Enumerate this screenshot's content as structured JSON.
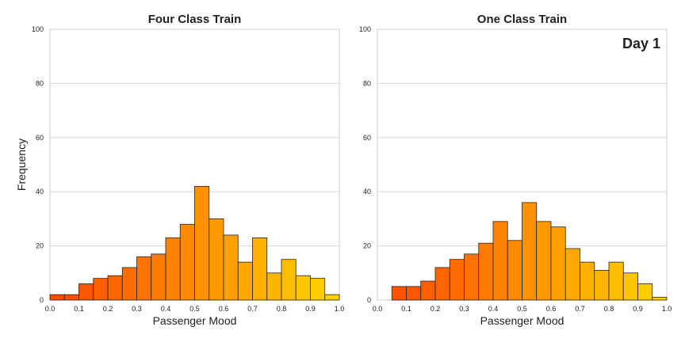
{
  "figure_annotation": "Day 1",
  "y_label": "Frequency",
  "chart_data": [
    {
      "type": "bar",
      "title": "Four Class Train",
      "xlabel": "Passenger Mood",
      "ylabel": "Frequency",
      "xlim": [
        0.0,
        1.0
      ],
      "ylim": [
        0,
        100
      ],
      "x_ticks": [
        "0.0",
        "0.1",
        "0.2",
        "0.3",
        "0.4",
        "0.5",
        "0.6",
        "0.7",
        "0.8",
        "0.9",
        "1.0"
      ],
      "y_ticks": [
        "0",
        "20",
        "40",
        "60",
        "80",
        "100"
      ],
      "grid": "horizontal",
      "bins": [
        {
          "start": 0.0,
          "end": 0.05,
          "value": 2
        },
        {
          "start": 0.05,
          "end": 0.1,
          "value": 2
        },
        {
          "start": 0.1,
          "end": 0.15,
          "value": 6
        },
        {
          "start": 0.15,
          "end": 0.2,
          "value": 8
        },
        {
          "start": 0.2,
          "end": 0.25,
          "value": 9
        },
        {
          "start": 0.25,
          "end": 0.3,
          "value": 12
        },
        {
          "start": 0.3,
          "end": 0.35,
          "value": 16
        },
        {
          "start": 0.35,
          "end": 0.4,
          "value": 17
        },
        {
          "start": 0.4,
          "end": 0.45,
          "value": 23
        },
        {
          "start": 0.45,
          "end": 0.5,
          "value": 28
        },
        {
          "start": 0.5,
          "end": 0.55,
          "value": 42
        },
        {
          "start": 0.55,
          "end": 0.6,
          "value": 30
        },
        {
          "start": 0.6,
          "end": 0.65,
          "value": 24
        },
        {
          "start": 0.65,
          "end": 0.7,
          "value": 14
        },
        {
          "start": 0.7,
          "end": 0.75,
          "value": 23
        },
        {
          "start": 0.75,
          "end": 0.8,
          "value": 10
        },
        {
          "start": 0.8,
          "end": 0.85,
          "value": 15
        },
        {
          "start": 0.85,
          "end": 0.9,
          "value": 9
        },
        {
          "start": 0.9,
          "end": 0.95,
          "value": 8
        },
        {
          "start": 0.95,
          "end": 1.0,
          "value": 2
        }
      ]
    },
    {
      "type": "bar",
      "title": "One Class Train",
      "xlabel": "Passenger Mood",
      "xlim": [
        0.0,
        1.0
      ],
      "ylim": [
        0,
        100
      ],
      "x_ticks": [
        "0.0",
        "0.1",
        "0.2",
        "0.3",
        "0.4",
        "0.5",
        "0.6",
        "0.7",
        "0.8",
        "0.9",
        "1.0"
      ],
      "y_ticks": [
        "0",
        "20",
        "40",
        "60",
        "80",
        "100"
      ],
      "grid": "horizontal",
      "bins": [
        {
          "start": 0.05,
          "end": 0.1,
          "value": 5
        },
        {
          "start": 0.1,
          "end": 0.15,
          "value": 5
        },
        {
          "start": 0.15,
          "end": 0.2,
          "value": 7
        },
        {
          "start": 0.2,
          "end": 0.25,
          "value": 12
        },
        {
          "start": 0.25,
          "end": 0.3,
          "value": 15
        },
        {
          "start": 0.3,
          "end": 0.35,
          "value": 17
        },
        {
          "start": 0.35,
          "end": 0.4,
          "value": 21
        },
        {
          "start": 0.4,
          "end": 0.45,
          "value": 29
        },
        {
          "start": 0.45,
          "end": 0.5,
          "value": 22
        },
        {
          "start": 0.5,
          "end": 0.55,
          "value": 36
        },
        {
          "start": 0.55,
          "end": 0.6,
          "value": 29
        },
        {
          "start": 0.6,
          "end": 0.65,
          "value": 27
        },
        {
          "start": 0.65,
          "end": 0.7,
          "value": 19
        },
        {
          "start": 0.7,
          "end": 0.75,
          "value": 14
        },
        {
          "start": 0.75,
          "end": 0.8,
          "value": 11
        },
        {
          "start": 0.8,
          "end": 0.85,
          "value": 14
        },
        {
          "start": 0.85,
          "end": 0.9,
          "value": 10
        },
        {
          "start": 0.9,
          "end": 0.95,
          "value": 6
        },
        {
          "start": 0.95,
          "end": 1.0,
          "value": 1
        }
      ]
    }
  ],
  "colors": {
    "mood_low": "#ff4500",
    "mood_high": "#ffd700",
    "grid": "#d9d9d9",
    "spine": "#cccccc",
    "bar_edge": "#222222",
    "text": "#222222"
  }
}
